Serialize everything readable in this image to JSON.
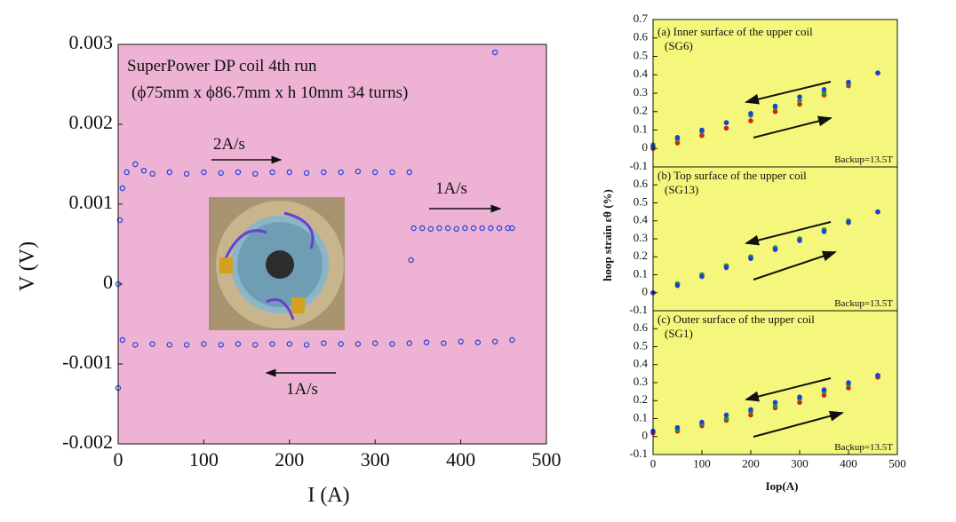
{
  "chart_data": [
    {
      "type": "scatter",
      "xlabel": "I (A)",
      "ylabel": "V (V)",
      "annotations": [
        "SuperPower DP coil 4th run",
        "(ϕ75mm x ϕ86.7mm x h 10mm 34 turns)",
        "2A/s",
        "1A/s",
        "1A/s"
      ],
      "xlim": [
        0,
        500
      ],
      "xticks": [
        0,
        100,
        200,
        300,
        400,
        500
      ],
      "ylim": [
        -0.002,
        0.003
      ],
      "yticks": [
        -0.002,
        -0.001,
        0,
        0.001,
        0.002,
        0.003
      ],
      "background": "#eeb3d4",
      "series": [
        {
          "color": "#1f3fd6",
          "x": [
            0,
            2,
            5,
            10,
            20,
            30,
            40,
            60,
            80,
            100,
            120,
            140,
            160,
            180,
            200,
            220,
            240,
            260,
            280,
            300,
            320,
            340
          ],
          "values": [
            0,
            0.0008,
            0.0012,
            0.0014,
            0.0015,
            0.00142,
            0.00138,
            0.0014,
            0.00138,
            0.0014,
            0.00139,
            0.0014,
            0.00138,
            0.0014,
            0.0014,
            0.00139,
            0.0014,
            0.0014,
            0.00141,
            0.0014,
            0.0014,
            0.0014
          ]
        },
        {
          "color": "#1f3fd6",
          "x": [
            342,
            345,
            355,
            365,
            375,
            385,
            395,
            405,
            415,
            425,
            435,
            440,
            445,
            455,
            460
          ],
          "values": [
            0.0003,
            0.0007,
            0.0007,
            0.00069,
            0.0007,
            0.0007,
            0.00069,
            0.0007,
            0.0007,
            0.0007,
            0.0007,
            0.0029,
            0.0007,
            0.0007,
            0.0007
          ]
        },
        {
          "color": "#1f3fd6",
          "x": [
            460,
            440,
            420,
            400,
            380,
            360,
            340,
            320,
            300,
            280,
            260,
            240,
            220,
            200,
            180,
            160,
            140,
            120,
            100,
            80,
            60,
            40,
            20,
            5,
            0
          ],
          "values": [
            -0.0007,
            -0.00072,
            -0.00073,
            -0.00072,
            -0.00074,
            -0.00073,
            -0.00074,
            -0.00075,
            -0.00074,
            -0.00075,
            -0.00075,
            -0.00074,
            -0.00076,
            -0.00075,
            -0.00075,
            -0.00076,
            -0.00075,
            -0.00076,
            -0.00075,
            -0.00076,
            -0.00076,
            -0.00075,
            -0.00076,
            -0.0007,
            -0.0013
          ]
        }
      ]
    },
    {
      "type": "scatter",
      "title": "(a) Inner surface of the upper coil",
      "subtitle": "(SG6)",
      "note": "Backup=13.5T",
      "xlim": [
        0,
        500
      ],
      "ylim": [
        -0.1,
        0.7
      ],
      "yticks": [
        -0.1,
        0,
        0.1,
        0.2,
        0.3,
        0.4,
        0.5,
        0.6,
        0.7
      ],
      "background": "#f5f77c",
      "series": [
        {
          "color": "#d42020",
          "x": [
            0,
            50,
            100,
            150,
            200,
            250,
            300,
            350,
            400,
            460
          ],
          "values": [
            0,
            0.03,
            0.07,
            0.11,
            0.15,
            0.2,
            0.24,
            0.29,
            0.34,
            0.41
          ]
        },
        {
          "color": "#1f9a30",
          "x": [
            0,
            50,
            100,
            150,
            200,
            250,
            300,
            350,
            400,
            460
          ],
          "values": [
            0.02,
            0.05,
            0.09,
            0.14,
            0.18,
            0.22,
            0.26,
            0.3,
            0.35,
            0.41
          ]
        },
        {
          "color": "#1f3fd6",
          "x": [
            0,
            50,
            100,
            150,
            200,
            250,
            300,
            350,
            400,
            460
          ],
          "values": [
            0.01,
            0.06,
            0.1,
            0.14,
            0.19,
            0.23,
            0.28,
            0.32,
            0.36,
            0.41
          ]
        }
      ]
    },
    {
      "type": "scatter",
      "title": "(b) Top surface of the upper coil",
      "subtitle": "(SG13)",
      "note": "Backup=13.5T",
      "xlim": [
        0,
        500
      ],
      "ylim": [
        -0.1,
        0.7
      ],
      "yticks": [
        -0.1,
        0,
        0.1,
        0.2,
        0.3,
        0.4,
        0.5,
        0.6
      ],
      "ylabel": "hoop strain εθ (%)",
      "background": "#f5f77c",
      "series": [
        {
          "color": "#d42020",
          "x": [
            0,
            50,
            100,
            150,
            200,
            250,
            300,
            350,
            400,
            460
          ],
          "values": [
            0,
            0.05,
            0.1,
            0.15,
            0.2,
            0.25,
            0.3,
            0.35,
            0.4,
            0.45
          ]
        },
        {
          "color": "#1f9a30",
          "x": [
            0,
            50,
            100,
            150,
            200,
            250,
            300,
            350,
            400,
            460
          ],
          "values": [
            0,
            0.05,
            0.1,
            0.15,
            0.2,
            0.25,
            0.3,
            0.35,
            0.4,
            0.45
          ]
        },
        {
          "color": "#1f3fd6",
          "x": [
            0,
            50,
            100,
            150,
            200,
            250,
            300,
            350,
            400,
            460
          ],
          "values": [
            0,
            0.04,
            0.09,
            0.14,
            0.19,
            0.24,
            0.29,
            0.34,
            0.39,
            0.45
          ]
        }
      ]
    },
    {
      "type": "scatter",
      "title": "(c) Outer surface of the upper coil",
      "subtitle": "(SG1)",
      "note": "Backup=13.5T",
      "xlabel": "Iop(A)",
      "xlim": [
        0,
        500
      ],
      "xticks": [
        0,
        100,
        200,
        300,
        400,
        500
      ],
      "ylim": [
        -0.1,
        0.7
      ],
      "yticks": [
        -0.1,
        0,
        0.1,
        0.2,
        0.3,
        0.4,
        0.5,
        0.6
      ],
      "background": "#f5f77c",
      "series": [
        {
          "color": "#d42020",
          "x": [
            0,
            50,
            100,
            150,
            200,
            250,
            300,
            350,
            400,
            460
          ],
          "values": [
            0.02,
            0.03,
            0.06,
            0.09,
            0.12,
            0.16,
            0.19,
            0.23,
            0.27,
            0.33
          ]
        },
        {
          "color": "#1f9a30",
          "x": [
            0,
            50,
            100,
            150,
            200,
            250,
            300,
            350,
            400,
            460
          ],
          "values": [
            0.03,
            0.04,
            0.07,
            0.1,
            0.14,
            0.17,
            0.21,
            0.25,
            0.29,
            0.34
          ]
        },
        {
          "color": "#1f3fd6",
          "x": [
            0,
            50,
            100,
            150,
            200,
            250,
            300,
            350,
            400,
            460
          ],
          "values": [
            0.03,
            0.05,
            0.08,
            0.12,
            0.15,
            0.19,
            0.22,
            0.26,
            0.3,
            0.34
          ]
        }
      ]
    }
  ]
}
